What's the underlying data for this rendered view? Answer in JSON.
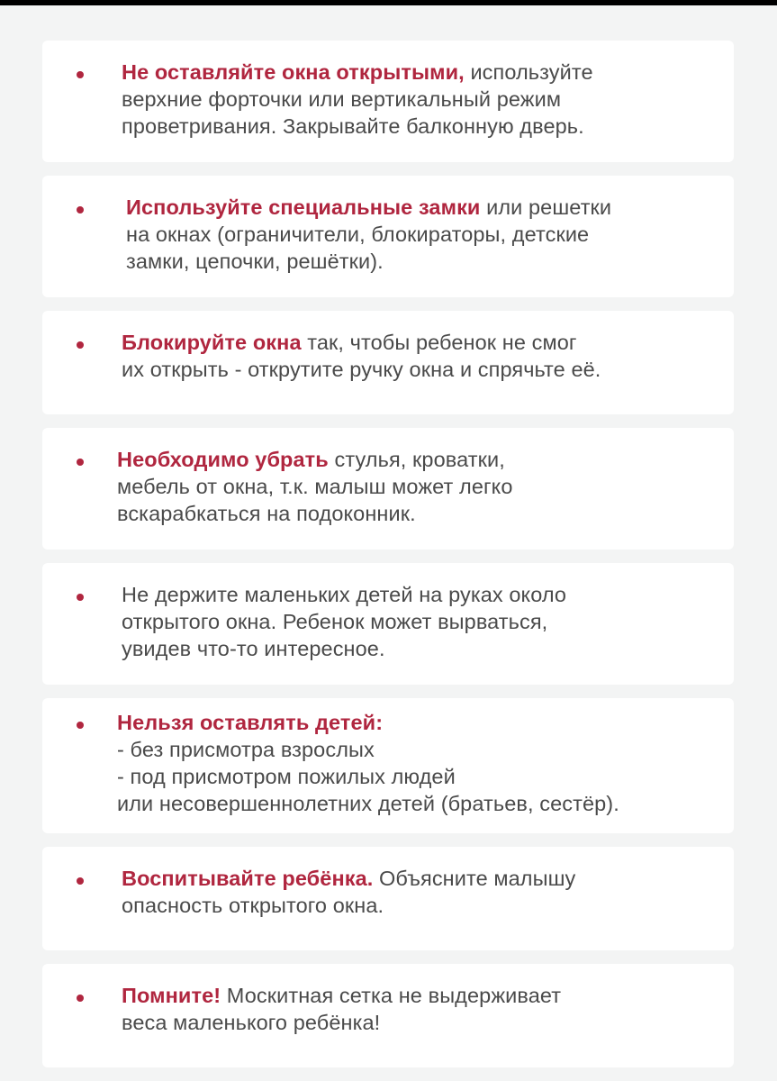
{
  "colors": {
    "accent": "#b0263f",
    "text": "#4a4a4a",
    "background": "#f3f4f4",
    "card": "#ffffff"
  },
  "items": [
    {
      "lines": [
        [
          {
            "t": "Не оставляйте окна открытыми,",
            "b": true
          },
          {
            "t": " используйте"
          }
        ],
        [
          {
            "t": "верхние форточки или вертикальный режим"
          }
        ],
        [
          {
            "t": "проветривания. Закрывайте балконную дверь."
          }
        ]
      ]
    },
    {
      "lines": [
        [
          {
            "t": "Используйте специальные замки",
            "b": true
          },
          {
            "t": " или решетки"
          }
        ],
        [
          {
            "t": "на окнах (ограничители, блокираторы, детские"
          }
        ],
        [
          {
            "t": "замки, цепочки, решётки)."
          }
        ]
      ]
    },
    {
      "lines": [
        [
          {
            "t": "Блокируйте окна",
            "b": true
          },
          {
            "t": " так, чтобы ребенок не смог"
          }
        ],
        [
          {
            "t": "их открыть - открутите ручку окна и спрячьте её."
          }
        ]
      ]
    },
    {
      "lines": [
        [
          {
            "t": "Необходимо убрать",
            "b": true
          },
          {
            "t": " стулья, кроватки,"
          }
        ],
        [
          {
            "t": "мебель от окна, т.к. малыш может легко"
          }
        ],
        [
          {
            "t": "вскарабкаться на подоконник."
          }
        ]
      ]
    },
    {
      "lines": [
        [
          {
            "t": "Не держите маленьких детей на руках около"
          }
        ],
        [
          {
            "t": "открытого окна. Ребенок может вырваться,"
          }
        ],
        [
          {
            "t": "увидев что-то интересное."
          }
        ]
      ]
    },
    {
      "lines": [
        [
          {
            "t": "Нельзя оставлять детей:",
            "b": true
          }
        ],
        [
          {
            "t": "- без присмотра взрослых"
          }
        ],
        [
          {
            "t": "- под присмотром пожилых людей"
          }
        ],
        [
          {
            "t": "или несовершеннолетних детей (братьев, сестёр)."
          }
        ]
      ]
    },
    {
      "lines": [
        [
          {
            "t": "Воспитывайте ребёнка.",
            "b": true
          },
          {
            "t": " Объясните малышу"
          }
        ],
        [
          {
            "t": "опасность открытого окна."
          }
        ]
      ]
    },
    {
      "lines": [
        [
          {
            "t": "Помните!",
            "b": true
          },
          {
            "t": " Москитная сетка не выдерживает"
          }
        ],
        [
          {
            "t": "веса маленького ребёнка!"
          }
        ]
      ]
    }
  ]
}
